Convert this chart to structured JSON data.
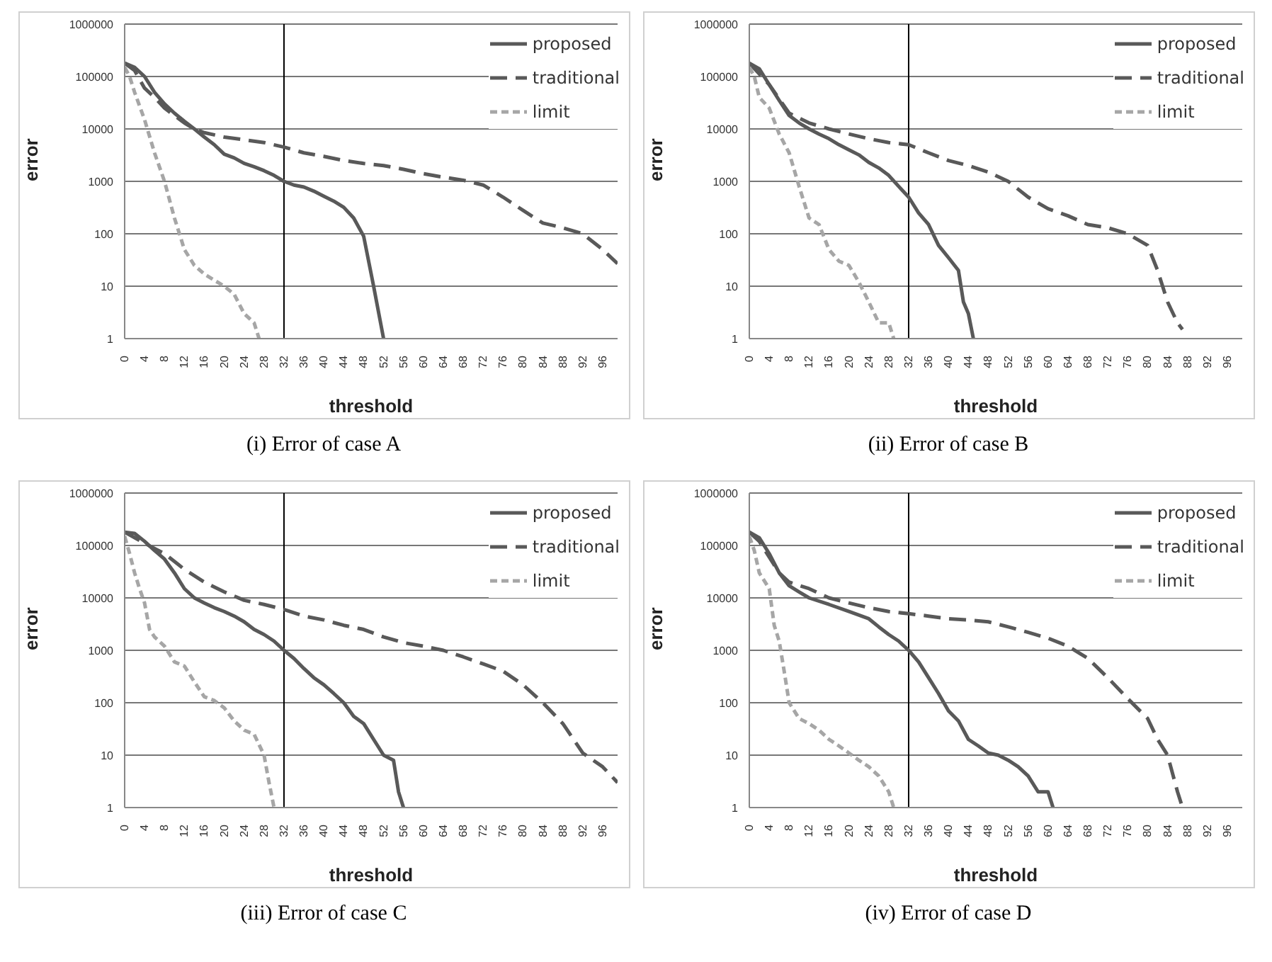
{
  "chart_data": [
    {
      "type": "line",
      "title": "(i) Error of case A",
      "xlabel": "threshold",
      "ylabel": "error",
      "xlim": [
        0,
        99
      ],
      "xticks": [
        0,
        4,
        8,
        12,
        16,
        20,
        24,
        28,
        32,
        36,
        40,
        44,
        48,
        52,
        56,
        60,
        64,
        68,
        72,
        76,
        80,
        84,
        88,
        92,
        96
      ],
      "ylim": [
        1,
        1000000
      ],
      "yticks": [
        1,
        10,
        100,
        1000,
        10000,
        100000,
        1000000
      ],
      "log": "y",
      "grid": "y",
      "legend": "top right",
      "marker": "none",
      "ref_lines": [
        {
          "axis": "x",
          "value": 32,
          "color": "#000000"
        }
      ],
      "series": [
        {
          "name": "proposed",
          "color": "#595959",
          "line_style": "solid",
          "x": [
            0,
            2,
            4,
            6,
            8,
            10,
            12,
            14,
            16,
            18,
            20,
            22,
            24,
            26,
            28,
            30,
            32,
            34,
            36,
            38,
            40,
            42,
            44,
            46,
            48,
            50,
            52
          ],
          "values": [
            180000,
            150000,
            100000,
            50000,
            30000,
            20000,
            14000,
            10000,
            7000,
            5000,
            3300,
            2800,
            2200,
            1900,
            1600,
            1300,
            1000,
            850,
            780,
            650,
            520,
            420,
            320,
            200,
            90,
            10,
            1
          ]
        },
        {
          "name": "traditional",
          "color": "#595959",
          "line_style": "dashed",
          "x": [
            0,
            2,
            4,
            6,
            8,
            10,
            12,
            14,
            16,
            20,
            24,
            28,
            32,
            36,
            40,
            44,
            48,
            52,
            56,
            60,
            64,
            68,
            72,
            76,
            80,
            84,
            88,
            92,
            96,
            99
          ],
          "values": [
            180000,
            130000,
            60000,
            40000,
            25000,
            18000,
            13000,
            10000,
            8500,
            7000,
            6200,
            5500,
            4500,
            3500,
            3000,
            2500,
            2200,
            2000,
            1700,
            1400,
            1200,
            1050,
            850,
            500,
            280,
            160,
            130,
            100,
            50,
            27
          ]
        },
        {
          "name": "limit",
          "color": "#a6a6a6",
          "line_style": "dotted",
          "x": [
            0,
            1,
            2,
            4,
            6,
            8,
            10,
            12,
            14,
            16,
            18,
            20,
            22,
            24,
            26,
            27
          ],
          "values": [
            150000,
            100000,
            50000,
            15000,
            3500,
            1000,
            200,
            50,
            25,
            17,
            13,
            10,
            7,
            3,
            2,
            1
          ]
        }
      ]
    },
    {
      "type": "line",
      "title": "(ii) Error of case B",
      "xlabel": "threshold",
      "ylabel": "error",
      "xlim": [
        0,
        99
      ],
      "xticks": [
        0,
        4,
        8,
        12,
        16,
        20,
        24,
        28,
        32,
        36,
        40,
        44,
        48,
        52,
        56,
        60,
        64,
        68,
        72,
        76,
        80,
        84,
        88,
        92,
        96
      ],
      "ylim": [
        1,
        1000000
      ],
      "yticks": [
        1,
        10,
        100,
        1000,
        10000,
        100000,
        1000000
      ],
      "log": "y",
      "grid": "y",
      "legend": "top right",
      "marker": "none",
      "ref_lines": [
        {
          "axis": "x",
          "value": 32,
          "color": "#000000"
        }
      ],
      "series": [
        {
          "name": "proposed",
          "color": "#595959",
          "line_style": "solid",
          "x": [
            0,
            2,
            4,
            6,
            8,
            10,
            12,
            14,
            16,
            18,
            20,
            22,
            24,
            26,
            28,
            30,
            32,
            34,
            36,
            38,
            40,
            42,
            43,
            44,
            45
          ],
          "values": [
            180000,
            140000,
            70000,
            35000,
            18000,
            13000,
            10000,
            8000,
            6500,
            5000,
            4000,
            3200,
            2300,
            1800,
            1300,
            800,
            500,
            250,
            150,
            60,
            35,
            20,
            5,
            3,
            1
          ]
        },
        {
          "name": "traditional",
          "color": "#595959",
          "line_style": "dashed",
          "x": [
            0,
            4,
            8,
            12,
            16,
            20,
            24,
            28,
            32,
            36,
            40,
            44,
            48,
            52,
            56,
            60,
            64,
            68,
            72,
            76,
            80,
            82,
            84,
            86,
            87
          ],
          "values": [
            180000,
            70000,
            20000,
            13000,
            10000,
            8000,
            6500,
            5500,
            5000,
            3500,
            2500,
            2000,
            1500,
            1000,
            500,
            300,
            220,
            150,
            130,
            100,
            60,
            20,
            5,
            2,
            1.5
          ]
        },
        {
          "name": "limit",
          "color": "#a6a6a6",
          "line_style": "dotted",
          "x": [
            0,
            1,
            2,
            4,
            6,
            8,
            10,
            12,
            14,
            16,
            18,
            20,
            22,
            24,
            26,
            28,
            29
          ],
          "values": [
            150000,
            100000,
            40000,
            25000,
            8000,
            3500,
            800,
            200,
            150,
            50,
            30,
            25,
            12,
            5,
            2,
            2,
            1
          ]
        }
      ]
    },
    {
      "type": "line",
      "title": "(iii) Error of case C",
      "xlabel": "threshold",
      "ylabel": "error",
      "xlim": [
        0,
        99
      ],
      "xticks": [
        0,
        4,
        8,
        12,
        16,
        20,
        24,
        28,
        32,
        36,
        40,
        44,
        48,
        52,
        56,
        60,
        64,
        68,
        72,
        76,
        80,
        84,
        88,
        92,
        96
      ],
      "ylim": [
        1,
        1000000
      ],
      "yticks": [
        1,
        10,
        100,
        1000,
        10000,
        100000,
        1000000
      ],
      "log": "y",
      "grid": "y",
      "legend": "top right",
      "marker": "none",
      "ref_lines": [
        {
          "axis": "x",
          "value": 32,
          "color": "#000000"
        }
      ],
      "series": [
        {
          "name": "proposed",
          "color": "#595959",
          "line_style": "solid",
          "x": [
            0,
            2,
            4,
            6,
            8,
            10,
            12,
            14,
            16,
            18,
            20,
            22,
            24,
            26,
            28,
            30,
            32,
            34,
            36,
            38,
            40,
            42,
            44,
            46,
            48,
            50,
            52,
            54,
            55,
            56
          ],
          "values": [
            180000,
            170000,
            120000,
            80000,
            55000,
            30000,
            15000,
            10000,
            8000,
            6500,
            5500,
            4500,
            3500,
            2500,
            2000,
            1500,
            1000,
            700,
            450,
            300,
            220,
            150,
            100,
            55,
            40,
            20,
            10,
            8,
            2,
            1
          ]
        },
        {
          "name": "traditional",
          "color": "#595959",
          "line_style": "dashed",
          "x": [
            0,
            4,
            8,
            12,
            16,
            20,
            24,
            28,
            32,
            36,
            40,
            44,
            48,
            52,
            56,
            60,
            64,
            68,
            72,
            76,
            80,
            84,
            88,
            92,
            96,
            99
          ],
          "values": [
            180000,
            110000,
            70000,
            35000,
            20000,
            13000,
            9000,
            7500,
            6000,
            4500,
            3800,
            3000,
            2500,
            1800,
            1400,
            1200,
            1000,
            750,
            550,
            400,
            220,
            100,
            40,
            11,
            6,
            3
          ]
        },
        {
          "name": "limit",
          "color": "#a6a6a6",
          "line_style": "dotted",
          "x": [
            0,
            1,
            2,
            3,
            4,
            5,
            6,
            8,
            10,
            12,
            14,
            16,
            18,
            20,
            22,
            24,
            26,
            28,
            29,
            30
          ],
          "values": [
            150000,
            70000,
            30000,
            15000,
            8000,
            2500,
            1800,
            1200,
            600,
            500,
            250,
            130,
            110,
            80,
            45,
            30,
            25,
            10,
            3,
            1
          ]
        }
      ]
    },
    {
      "type": "line",
      "title": "(iv) Error of case D",
      "xlabel": "threshold",
      "ylabel": "error",
      "xlim": [
        0,
        99
      ],
      "xticks": [
        0,
        4,
        8,
        12,
        16,
        20,
        24,
        28,
        32,
        36,
        40,
        44,
        48,
        52,
        56,
        60,
        64,
        68,
        72,
        76,
        80,
        84,
        88,
        92,
        96
      ],
      "ylim": [
        1,
        1000000
      ],
      "yticks": [
        1,
        10,
        100,
        1000,
        10000,
        100000,
        1000000
      ],
      "log": "y",
      "grid": "y",
      "legend": "top right",
      "marker": "none",
      "ref_lines": [
        {
          "axis": "x",
          "value": 32,
          "color": "#000000"
        }
      ],
      "series": [
        {
          "name": "proposed",
          "color": "#595959",
          "line_style": "solid",
          "x": [
            0,
            2,
            4,
            6,
            8,
            10,
            12,
            16,
            20,
            24,
            26,
            28,
            30,
            32,
            34,
            36,
            38,
            40,
            42,
            44,
            46,
            48,
            50,
            52,
            54,
            56,
            58,
            60,
            61
          ],
          "values": [
            180000,
            140000,
            70000,
            30000,
            17000,
            13000,
            10000,
            7500,
            5500,
            4000,
            2800,
            2000,
            1500,
            1000,
            600,
            300,
            150,
            70,
            45,
            20,
            15,
            11,
            10,
            8,
            6,
            4,
            2,
            2,
            1
          ]
        },
        {
          "name": "traditional",
          "color": "#595959",
          "line_style": "dashed",
          "x": [
            0,
            2,
            4,
            6,
            8,
            12,
            16,
            20,
            24,
            28,
            32,
            36,
            40,
            44,
            48,
            52,
            56,
            60,
            64,
            68,
            72,
            76,
            80,
            82,
            84,
            86,
            87
          ],
          "values": [
            180000,
            120000,
            60000,
            30000,
            20000,
            15000,
            10000,
            8000,
            6500,
            5500,
            5000,
            4500,
            4000,
            3800,
            3500,
            2800,
            2200,
            1700,
            1200,
            700,
            300,
            120,
            50,
            20,
            10,
            2,
            1
          ]
        },
        {
          "name": "limit",
          "color": "#a6a6a6",
          "line_style": "dotted",
          "x": [
            0,
            1,
            2,
            4,
            5,
            6,
            7,
            8,
            10,
            12,
            14,
            16,
            18,
            20,
            22,
            24,
            26,
            28,
            29
          ],
          "values": [
            150000,
            80000,
            30000,
            15000,
            3000,
            1500,
            400,
            100,
            50,
            40,
            30,
            20,
            15,
            11,
            8,
            6,
            4,
            2,
            1
          ]
        }
      ]
    }
  ]
}
